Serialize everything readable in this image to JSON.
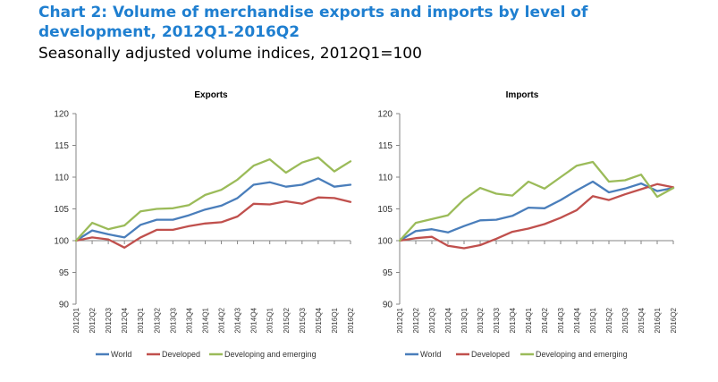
{
  "header": {
    "title": "Chart 2: Volume of merchandise exports and imports by level of development, 2012Q1-2016Q2",
    "subtitle": "Seasonally adjusted volume indices, 2012Q1=100"
  },
  "colors": {
    "world": "#4a7ebb",
    "developed": "#c0504d",
    "developing": "#9bbb59",
    "axis": "#868686"
  },
  "chart_data": [
    {
      "type": "line",
      "title": "Exports",
      "categories": [
        "2012Q1",
        "2012Q2",
        "2012Q3",
        "2012Q4",
        "2013Q1",
        "2013Q2",
        "2013Q3",
        "2013Q4",
        "2014Q1",
        "2014Q2",
        "2014Q3",
        "2014Q4",
        "2015Q1",
        "2015Q2",
        "2015Q3",
        "2015Q4",
        "2016Q1",
        "2016Q2"
      ],
      "ylim": [
        90,
        120
      ],
      "yticks": [
        90,
        95,
        100,
        105,
        110,
        115,
        120
      ],
      "grid": false,
      "legend_position": "bottom",
      "series": [
        {
          "name": "World",
          "values": [
            100,
            101.6,
            101,
            100.5,
            102.5,
            103.3,
            103.3,
            104,
            104.9,
            105.5,
            106.7,
            108.8,
            109.2,
            108.5,
            108.8,
            109.8,
            108.5,
            108.8
          ]
        },
        {
          "name": "Developed",
          "values": [
            100,
            100.5,
            100.2,
            98.9,
            100.5,
            101.7,
            101.7,
            102.3,
            102.7,
            102.9,
            103.8,
            105.8,
            105.7,
            106.2,
            105.8,
            106.8,
            106.7,
            106.1
          ]
        },
        {
          "name": "Developing and emerging",
          "values": [
            100,
            102.8,
            101.8,
            102.4,
            104.6,
            105,
            105.1,
            105.6,
            107.2,
            108,
            109.6,
            111.8,
            112.8,
            110.7,
            112.3,
            113.1,
            110.9,
            112.5
          ]
        }
      ]
    },
    {
      "type": "line",
      "title": "Imports",
      "categories": [
        "2012Q1",
        "2012Q2",
        "2012Q3",
        "2012Q4",
        "2013Q1",
        "2013Q2",
        "2013Q3",
        "2013Q4",
        "2014Q1",
        "2014Q2",
        "2014Q3",
        "2014Q4",
        "2015Q1",
        "2015Q2",
        "2015Q3",
        "2015Q4",
        "2016Q1",
        "2016Q2"
      ],
      "ylim": [
        90,
        120
      ],
      "yticks": [
        90,
        95,
        100,
        105,
        110,
        115,
        120
      ],
      "grid": false,
      "legend_position": "bottom",
      "series": [
        {
          "name": "World",
          "values": [
            100,
            101.5,
            101.8,
            101.3,
            102.3,
            103.2,
            103.3,
            103.9,
            105.2,
            105.1,
            106.4,
            107.9,
            109.3,
            107.6,
            108.2,
            109,
            107.8,
            108.3
          ]
        },
        {
          "name": "Developed",
          "values": [
            100,
            100.4,
            100.6,
            99.2,
            98.8,
            99.3,
            100.3,
            101.4,
            101.9,
            102.6,
            103.6,
            104.8,
            107,
            106.4,
            107.3,
            108.1,
            108.9,
            108.4
          ]
        },
        {
          "name": "Developing and emerging",
          "values": [
            100,
            102.8,
            103.4,
            104,
            106.5,
            108.3,
            107.4,
            107.1,
            109.3,
            108.2,
            110,
            111.8,
            112.4,
            109.3,
            109.5,
            110.4,
            106.9,
            108.3
          ]
        }
      ]
    }
  ]
}
